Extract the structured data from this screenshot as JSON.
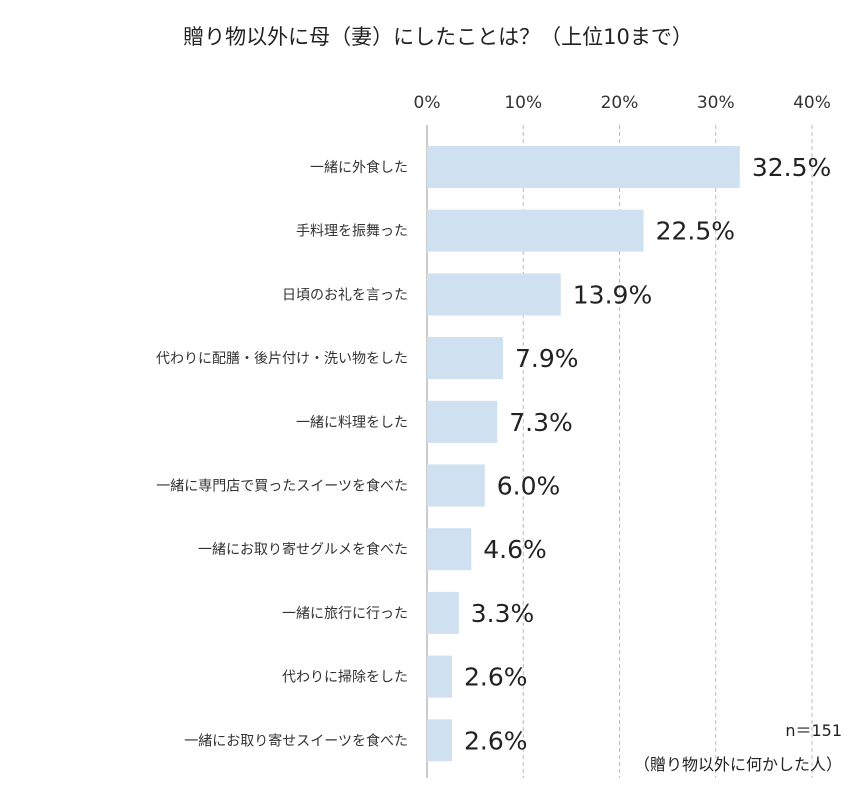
{
  "chart_data": {
    "type": "bar",
    "orientation": "horizontal",
    "title": "贈り物以外に母（妻）にしたことは？（上位10まで）",
    "categories": [
      "一緒に外食した",
      "手料理を振舞った",
      "日頃のお礼を言った",
      "代わりに配膳・後片付け・洗い物をした",
      "一緒に料理をした",
      "一緒に専門店で買ったスイーツを食べた",
      "一緒にお取り寄せグルメを食べた",
      "一緒に旅行に行った",
      "代わりに掃除をした",
      "一緒にお取り寄せスイーツを食べた"
    ],
    "values": [
      32.5,
      22.5,
      13.9,
      7.9,
      7.3,
      6.0,
      4.6,
      3.3,
      2.6,
      2.6
    ],
    "value_labels": [
      "32.5%",
      "22.5%",
      "13.9%",
      "7.9%",
      "7.3%",
      "6.0%",
      "4.6%",
      "3.3%",
      "2.6%",
      "2.6%"
    ],
    "xlim": [
      0,
      40
    ],
    "ticks": [
      0,
      10,
      20,
      30,
      40
    ],
    "tick_labels": [
      "0%",
      "10%",
      "20%",
      "30%",
      "40%"
    ],
    "axis_position": "top",
    "grid": true,
    "bar_color": "#cfe0f1",
    "grid_color": "#bbbbbb",
    "sample_note": "n＝151",
    "sample_description": "（贈り物以外に何かした人）"
  }
}
